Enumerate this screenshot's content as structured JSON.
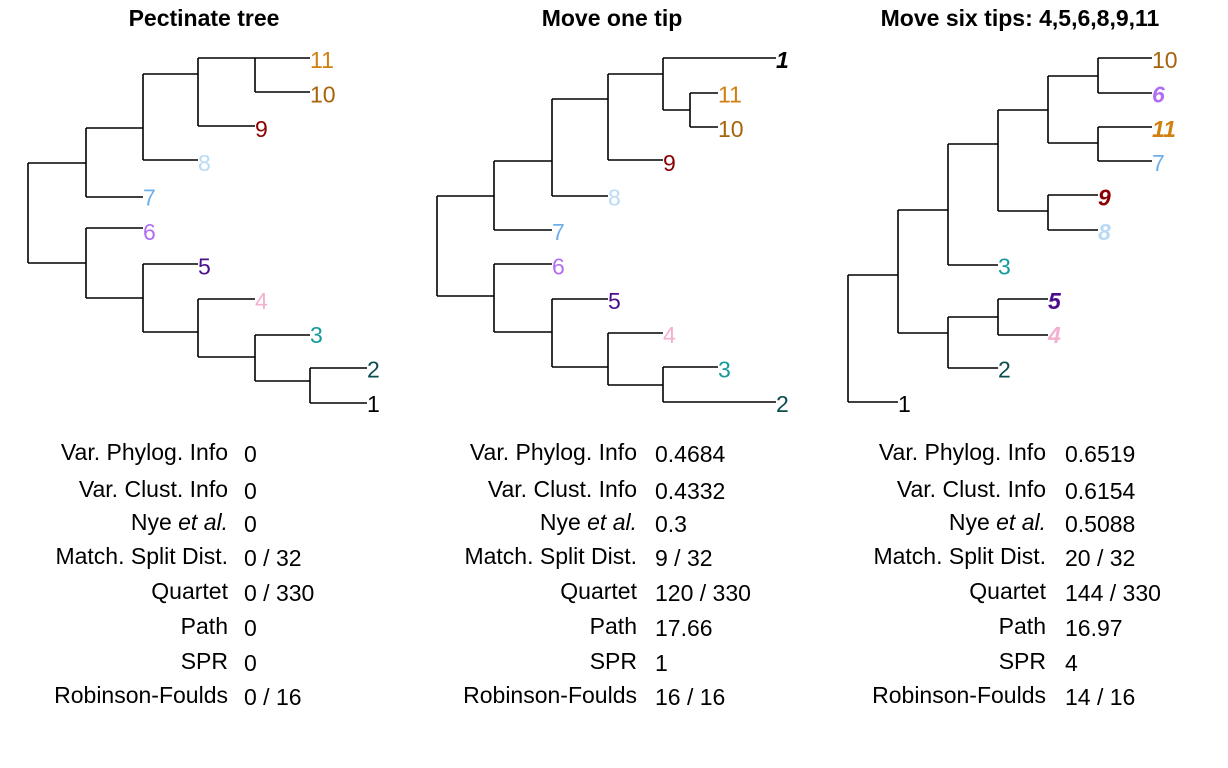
{
  "colors": {
    "1": "#000000",
    "2": "#0b4d4d",
    "3": "#179a9a",
    "4": "#f3b0cf",
    "5": "#4b0e8c",
    "6": "#b26ef0",
    "7": "#6fb0ea",
    "8": "#b9daf4",
    "9": "#8b0000",
    "10": "#a8630a",
    "11": "#d1800f"
  },
  "panels": [
    {
      "title": "Pectinate tree",
      "tips": [
        {
          "label": "11",
          "moved": false
        },
        {
          "label": "10",
          "moved": false
        },
        {
          "label": "9",
          "moved": false
        },
        {
          "label": "8",
          "moved": false
        },
        {
          "label": "7",
          "moved": false
        },
        {
          "label": "6",
          "moved": false
        },
        {
          "label": "5",
          "moved": false
        },
        {
          "label": "4",
          "moved": false
        },
        {
          "label": "3",
          "moved": false
        },
        {
          "label": "2",
          "moved": false
        },
        {
          "label": "1",
          "moved": false
        }
      ],
      "metrics": [
        {
          "label": "Var. Phylog. Info",
          "value": "0"
        },
        {
          "label": "Var. Clust. Info",
          "value": "0"
        },
        {
          "label_pre": "Nye ",
          "label_em": "et al.",
          "value": "0"
        },
        {
          "label": "Match. Split Dist.",
          "value": "0 / 32"
        },
        {
          "label": "Quartet",
          "value": "0 / 330"
        },
        {
          "label": "Path",
          "value": "0"
        },
        {
          "label": "SPR",
          "value": "0"
        },
        {
          "label": "Robinson-Foulds",
          "value": "0 / 16"
        }
      ]
    },
    {
      "title": "Move one tip",
      "tips": [
        {
          "label": "1",
          "moved": true
        },
        {
          "label": "11",
          "moved": false
        },
        {
          "label": "10",
          "moved": false
        },
        {
          "label": "9",
          "moved": false
        },
        {
          "label": "8",
          "moved": false
        },
        {
          "label": "7",
          "moved": false
        },
        {
          "label": "6",
          "moved": false
        },
        {
          "label": "5",
          "moved": false
        },
        {
          "label": "4",
          "moved": false
        },
        {
          "label": "3",
          "moved": false
        },
        {
          "label": "2",
          "moved": false
        }
      ],
      "metrics": [
        {
          "label": "Var. Phylog. Info",
          "value": "0.4684"
        },
        {
          "label": "Var. Clust. Info",
          "value": "0.4332"
        },
        {
          "label_pre": "Nye ",
          "label_em": "et al.",
          "value": "0.3"
        },
        {
          "label": "Match. Split Dist.",
          "value": "9 / 32"
        },
        {
          "label": "Quartet",
          "value": "120 / 330"
        },
        {
          "label": "Path",
          "value": "17.66"
        },
        {
          "label": "SPR",
          "value": "1"
        },
        {
          "label": "Robinson-Foulds",
          "value": "16 / 16"
        }
      ]
    },
    {
      "title": "Move six tips: 4,5,6,8,9,11",
      "tips": [
        {
          "label": "10",
          "moved": false
        },
        {
          "label": "6",
          "moved": true
        },
        {
          "label": "11",
          "moved": true
        },
        {
          "label": "7",
          "moved": false
        },
        {
          "label": "9",
          "moved": true
        },
        {
          "label": "8",
          "moved": true
        },
        {
          "label": "3",
          "moved": false
        },
        {
          "label": "5",
          "moved": true
        },
        {
          "label": "4",
          "moved": true
        },
        {
          "label": "2",
          "moved": false
        },
        {
          "label": "1",
          "moved": false
        }
      ],
      "metrics": [
        {
          "label": "Var. Phylog. Info",
          "value": "0.6519"
        },
        {
          "label": "Var. Clust. Info",
          "value": "0.6154"
        },
        {
          "label_pre": "Nye ",
          "label_em": "et al.",
          "value": "0.5088"
        },
        {
          "label": "Match. Split Dist.",
          "value": "20 / 32"
        },
        {
          "label": "Quartet",
          "value": "144 / 330"
        },
        {
          "label": "Path",
          "value": "16.97"
        },
        {
          "label": "SPR",
          "value": "4"
        },
        {
          "label": "Robinson-Foulds",
          "value": "14 / 16"
        }
      ]
    }
  ]
}
